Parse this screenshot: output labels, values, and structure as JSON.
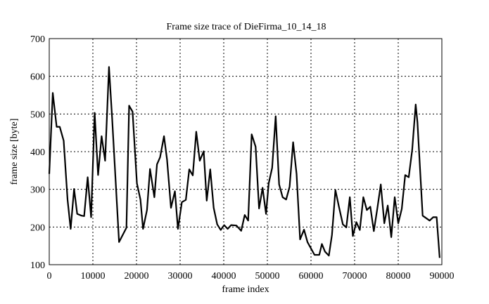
{
  "chart_data": {
    "type": "line",
    "title": "Frame size trace of DieFirma_10_14_18",
    "xlabel": "frame index",
    "ylabel": "frame size [byte]",
    "xlim": [
      0,
      90000
    ],
    "ylim": [
      100,
      700
    ],
    "xticks": [
      "0",
      "10000",
      "20000",
      "30000",
      "40000",
      "50000",
      "60000",
      "70000",
      "80000",
      "90000"
    ],
    "yticks": [
      "100",
      "200",
      "300",
      "400",
      "500",
      "600",
      "700"
    ],
    "grid": true,
    "line_color": "#000000",
    "x": [
      0,
      800,
      1700,
      2400,
      3300,
      4200,
      4900,
      5700,
      6400,
      7400,
      8000,
      8800,
      9600,
      10400,
      11200,
      12000,
      12800,
      13700,
      14400,
      16000,
      17700,
      18300,
      19100,
      20100,
      20900,
      21500,
      22400,
      23100,
      24100,
      24700,
      25400,
      26300,
      27000,
      27900,
      28800,
      29500,
      30400,
      31300,
      32100,
      32900,
      33700,
      34500,
      35400,
      36100,
      36900,
      37700,
      38500,
      39300,
      40100,
      40900,
      41700,
      42900,
      44000,
      44800,
      45600,
      46400,
      47300,
      48100,
      48900,
      49700,
      50300,
      51100,
      51900,
      52700,
      53500,
      54300,
      55100,
      55900,
      56700,
      57500,
      58400,
      59200,
      60800,
      61900,
      62500,
      63200,
      64100,
      64800,
      65600,
      66400,
      67300,
      68100,
      68900,
      69600,
      70400,
      71200,
      72000,
      72800,
      73600,
      74400,
      75200,
      76000,
      76800,
      77600,
      78400,
      79200,
      80000,
      80800,
      81600,
      82400,
      83200,
      84000,
      84400,
      85600,
      87200,
      88000,
      88800,
      89500
    ],
    "y": [
      341,
      556,
      466,
      466,
      429,
      273,
      195,
      301,
      235,
      230,
      229,
      332,
      226,
      503,
      338,
      441,
      376,
      625,
      491,
      160,
      198,
      522,
      506,
      316,
      273,
      195,
      245,
      354,
      279,
      366,
      385,
      441,
      379,
      251,
      295,
      195,
      266,
      272,
      353,
      337,
      453,
      376,
      401,
      270,
      353,
      251,
      207,
      192,
      205,
      195,
      205,
      204,
      190,
      232,
      217,
      446,
      413,
      249,
      304,
      235,
      316,
      357,
      494,
      313,
      279,
      273,
      307,
      425,
      341,
      167,
      193,
      160,
      126,
      126,
      155,
      135,
      124,
      179,
      298,
      254,
      207,
      199,
      279,
      176,
      213,
      192,
      279,
      245,
      254,
      189,
      248,
      313,
      210,
      257,
      173,
      279,
      210,
      248,
      338,
      332,
      404,
      525,
      478,
      230,
      217,
      226,
      226,
      118
    ]
  }
}
